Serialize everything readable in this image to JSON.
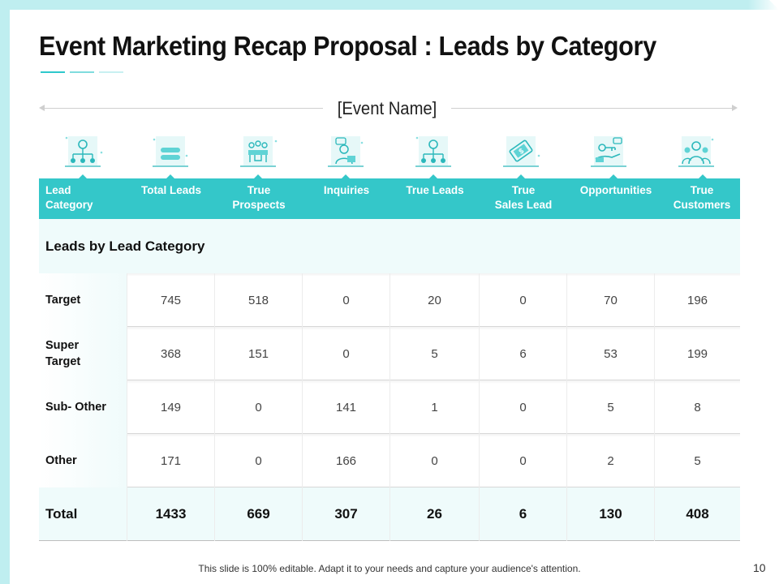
{
  "slide": {
    "title": "Event Marketing Recap Proposal : Leads by Category",
    "event_name": "[Event Name]",
    "footer": "This slide is 100% editable. Adapt it to your needs and capture your audience's attention.",
    "page_number": "10"
  },
  "colors": {
    "accent": "#34c7c9",
    "light": "#effbfb",
    "frame": "#bfeef0"
  },
  "icons": [
    "org-network-icon",
    "stack-icon",
    "team-meeting-icon",
    "support-agent-icon",
    "org-network-icon",
    "dollar-tag-icon",
    "handshake-key-icon",
    "customer-group-icon"
  ],
  "header": {
    "columns": [
      {
        "line1": "Lead",
        "line2": "Category"
      },
      {
        "line1": "Total Leads",
        "line2": ""
      },
      {
        "line1": "True",
        "line2": "Prospects"
      },
      {
        "line1": "Inquiries",
        "line2": ""
      },
      {
        "line1": "True Leads",
        "line2": ""
      },
      {
        "line1": "True",
        "line2": "Sales Lead"
      },
      {
        "line1": "Opportunities",
        "line2": ""
      },
      {
        "line1": "True",
        "line2": "Customers"
      }
    ]
  },
  "section": {
    "label": "Leads by Lead Category"
  },
  "rows": [
    {
      "line1": "Target",
      "line2": "",
      "values": [
        "745",
        "518",
        "0",
        "20",
        "0",
        "70",
        "196"
      ]
    },
    {
      "line1": "Super",
      "line2": "Target",
      "values": [
        "368",
        "151",
        "0",
        "5",
        "6",
        "53",
        "199"
      ]
    },
    {
      "line1": "Sub- Other",
      "line2": "",
      "values": [
        "149",
        "0",
        "141",
        "1",
        "0",
        "5",
        "8"
      ]
    },
    {
      "line1": "Other",
      "line2": "",
      "values": [
        "171",
        "0",
        "166",
        "0",
        "0",
        "2",
        "5"
      ]
    }
  ],
  "total": {
    "label": "Total",
    "values": [
      "1433",
      "669",
      "307",
      "26",
      "6",
      "130",
      "408"
    ]
  }
}
